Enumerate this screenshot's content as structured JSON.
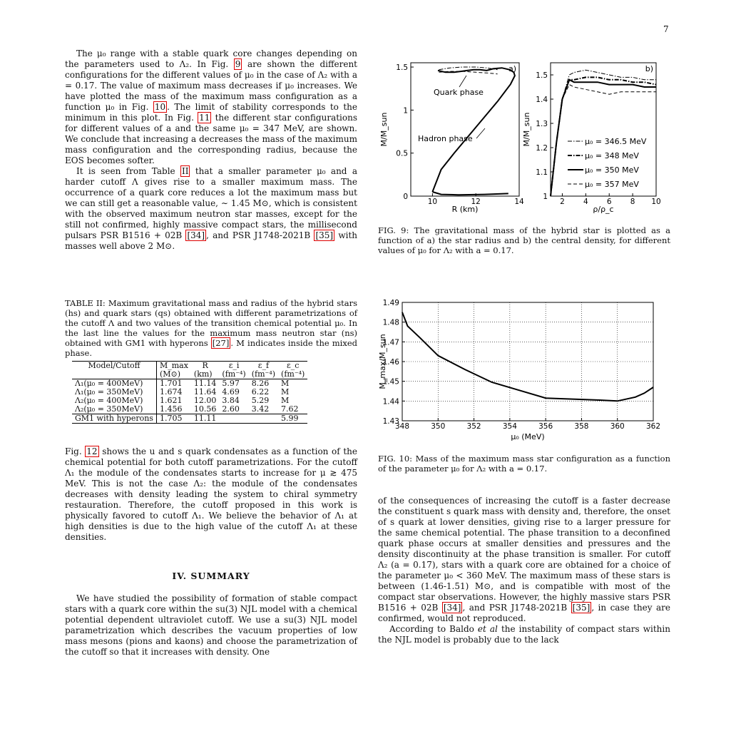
{
  "page": {
    "number": "7"
  },
  "left": {
    "p1": "The μ₀ range with a stable quark core changes depending on the parameters used to Λ₂. In Fig. ",
    "p1_ref": "9",
    "p1b": " are shown the different configurations for the different values of μ₀ in the case of Λ₂ with a = 0.17. The value of maximum mass decreases if μ₀ increases. We have plotted the mass of the maximum mass configuration as a function μ₀ in Fig. ",
    "p1_ref2": "10",
    "p1c": ". The limit of stability corresponds to the minimum in this plot. In Fig. ",
    "p1_ref3": "11",
    "p1d": " the different star configurations for different values of a and the same μ₀ = 347 MeV, are shown. We conclude that increasing a decreases the mass of the maximum mass configuration and the corresponding radius, because the EOS becomes softer.",
    "p2a": "It is seen from Table ",
    "p2_ref": "II",
    "p2b": " that a smaller parameter μ₀ and a harder cutoff Λ gives rise to a smaller maximum mass. The occurrence of a quark core reduces a lot the maximum mass but we can still get a reasonable value, ∼ 1.45 M⊙, which is consistent with the observed maximum neutron star masses, except for the still not confirmed, highly massive compact stars, the millisecond pulsars PSR B1516 + 02B ",
    "p2_ref2": "[34]",
    "p2c": ", and PSR J1748-2021B ",
    "p2_ref3": "[35]",
    "p2d": " with masses well above 2 M⊙.",
    "table_caption_a": "TABLE II: Maximum gravitational mass and radius of the hybrid stars (hs) and quark stars (qs) obtained with different parametrizations of the cutoff Λ and two values of the transition chemical potential μ₀. In the last line the values for the maximum mass neutron star (ns) obtained with GM1 with hyperons ",
    "table_caption_ref": "[27]",
    "table_caption_b": ". M indicates inside the mixed phase.",
    "p3a": "Fig. ",
    "p3_ref": "12",
    "p3b": " shows the u and s quark condensates as a function of the chemical potential for both cutoff parametrizations. For the cutoff Λ₁ the module of the condensates starts to increase for μ ≳ 475 MeV. This is not the case Λ₂: the module of the condensates decreases with density leading the system to chiral symmetry restauration. Therefore, the cutoff proposed in this work is physically favored to cutoff Λ₁. We believe the behavior of Λ₁ at high densities is due to the high value of the cutoff Λ₁ at these densities.",
    "section_title": "IV.   SUMMARY",
    "p4": "We have studied the possibility of formation of stable compact stars with a quark core within the su(3) NJL model with a chemical potential dependent ultraviolet cutoff. We use a su(3) NJL model parametrization which describes the vacuum properties of low mass mesons (pions and kaons) and choose the parametrization of the cutoff so that it increases with density. One"
  },
  "table": {
    "headers": [
      "Model/Cutoff",
      "M_max",
      "R",
      "ε_i",
      "ε_f",
      "ε_c"
    ],
    "units": [
      "",
      "(M⊙)",
      "(km)",
      "(fm⁻⁴)",
      "(fm⁻⁴)",
      "(fm⁻⁴)"
    ],
    "rows": [
      [
        "Λ₁(μ₀ = 400MeV)",
        "1.701",
        "11.14",
        "5.97",
        "8.26",
        "M"
      ],
      [
        "Λ₁(μ₀ = 350MeV)",
        "1.674",
        "11.64",
        "4.69",
        "6.22",
        "M"
      ],
      [
        "Λ₂(μ₀ = 400MeV)",
        "1.621",
        "12.00",
        "3.84",
        "5.29",
        "M"
      ],
      [
        "Λ₂(μ₀ = 350MeV)",
        "1.456",
        "10.56",
        "2.60",
        "3.42",
        "7.62"
      ],
      [
        "GM1 with hyperons",
        "1.705",
        "11.11",
        "",
        "",
        "5.99"
      ]
    ]
  },
  "right": {
    "fig9_caption": "FIG. 9: The gravitational mass of the hybrid star is plotted as a function of a) the star radius and b) the central density, for different values of μ₀ for Λ₂ with a = 0.17.",
    "fig10_caption": "FIG. 10: Mass of the maximum mass star configuration as a function of the parameter μ₀ for Λ₂ with a = 0.17.",
    "p5": "of the consequences of increasing the cutoff is a faster decrease the constituent s quark mass with density and, therefore, the onset of s quark at lower densities, giving rise to a larger pressure for the same chemical potential. The phase transition to a deconfined quark phase occurs at smaller densities and pressures and the density discontinuity at the phase transition is smaller. For cutoff Λ₂ (a = 0.17), stars with a quark core are obtained for a choice of the parameter μ₀ < 360 MeV. The maximum mass of these stars is between (1.46-1.51) M⊙, and is compatible with most of the compact star observations. However, the highly massive stars PSR B1516 + 02B ",
    "p5_ref": "[34]",
    "p5b": ", and PSR J1748-2021B ",
    "p5_ref2": "[35]",
    "p5c": ", in case they are confirmed, would not reproduced.",
    "p6a": "According to Baldo ",
    "p6_em": "et al",
    "p6b": " the instability of compact stars within the NJL model is probably due to the lack"
  },
  "chart_data": [
    {
      "type": "line",
      "panel_label": "a)",
      "xlabel": "R (km)",
      "ylabel": "M/M_sun",
      "xlim": [
        9,
        14
      ],
      "ylim": [
        0,
        1.55
      ],
      "xticks": [
        "10",
        "12",
        "14"
      ],
      "yticks": [
        "0",
        "0.5",
        "1",
        "1.5"
      ],
      "annotations": [
        "Quark phase",
        "Hadron phase"
      ],
      "series": [
        {
          "style": "solid",
          "x": [
            10.0,
            10.4,
            11.0,
            12.0,
            13.0,
            13.6,
            13.8,
            13.75,
            13.55,
            13.2,
            12.8,
            12.5,
            12.2,
            11.9,
            11.6,
            11.3,
            11.0,
            10.6,
            10.25
          ],
          "y": [
            0.05,
            0.31,
            0.5,
            0.8,
            1.1,
            1.3,
            1.4,
            1.44,
            1.47,
            1.49,
            1.48,
            1.46,
            1.47,
            1.47,
            1.46,
            1.45,
            1.44,
            1.44,
            1.46
          ]
        },
        {
          "style": "solid",
          "x": [
            10.0,
            10.4,
            11.2,
            12.4,
            13.5
          ],
          "y": [
            0.05,
            0.02,
            0.015,
            0.02,
            0.03
          ]
        },
        {
          "style": "dash-dot",
          "x": [
            10.3,
            10.8,
            11.4,
            12.0,
            12.5,
            13.0
          ],
          "y": [
            1.47,
            1.49,
            1.5,
            1.5,
            1.49,
            1.47
          ]
        },
        {
          "style": "dashed",
          "x": [
            10.3,
            10.8,
            11.4,
            12.0,
            12.6,
            13.0
          ],
          "y": [
            1.44,
            1.45,
            1.45,
            1.44,
            1.43,
            1.42
          ]
        }
      ]
    },
    {
      "type": "line",
      "panel_label": "b)",
      "xlabel": "ρ/ρ_c",
      "ylabel": "M/M_sun",
      "xlim": [
        1,
        10
      ],
      "ylim": [
        1.0,
        1.55
      ],
      "xticks": [
        "2",
        "4",
        "6",
        "8",
        "10"
      ],
      "yticks": [
        "1",
        "1.1",
        "1.2",
        "1.3",
        "1.4",
        "1.5"
      ],
      "legend_position": "bottom-right",
      "series": [
        {
          "name": "μ₀ = 346.5 MeV",
          "style": "dash-dot",
          "x": [
            1.0,
            1.5,
            2.0,
            2.6,
            3.0,
            4.0,
            5.0,
            6.0,
            7.0,
            8.0,
            9.0,
            10.0
          ],
          "y": [
            1.0,
            1.22,
            1.4,
            1.5,
            1.51,
            1.52,
            1.51,
            1.5,
            1.49,
            1.49,
            1.48,
            1.48
          ]
        },
        {
          "name": "μ₀ = 348 MeV",
          "style": "dash-dot-bold",
          "x": [
            1.0,
            1.5,
            2.0,
            2.6,
            3.0,
            4.0,
            5.0,
            6.0,
            7.0,
            8.0,
            9.0,
            10.0
          ],
          "y": [
            1.0,
            1.22,
            1.4,
            1.48,
            1.48,
            1.49,
            1.49,
            1.48,
            1.48,
            1.47,
            1.47,
            1.46
          ]
        },
        {
          "name": "μ₀ = 350 MeV",
          "style": "solid",
          "x": [
            1.0,
            1.5,
            2.0,
            2.6,
            3.0,
            4.0,
            5.0,
            6.0,
            7.0,
            8.0,
            9.0,
            10.0
          ],
          "y": [
            1.0,
            1.22,
            1.4,
            1.48,
            1.47,
            1.47,
            1.47,
            1.46,
            1.46,
            1.46,
            1.45,
            1.45
          ]
        },
        {
          "name": "μ₀ = 357 MeV",
          "style": "dashed",
          "x": [
            1.0,
            1.5,
            2.0,
            2.6,
            3.0,
            4.0,
            5.0,
            6.0,
            7.0,
            8.0,
            9.0,
            10.0
          ],
          "y": [
            1.0,
            1.22,
            1.4,
            1.46,
            1.45,
            1.44,
            1.43,
            1.42,
            1.43,
            1.43,
            1.43,
            1.43
          ]
        }
      ]
    },
    {
      "type": "line",
      "xlabel": "μ₀ (MeV)",
      "ylabel": "M_max/M_sun",
      "xlim": [
        348,
        362
      ],
      "ylim": [
        1.43,
        1.49
      ],
      "grid": true,
      "xticks": [
        "348",
        "350",
        "352",
        "354",
        "356",
        "358",
        "360",
        "362"
      ],
      "yticks": [
        "1.43",
        "1.44",
        "1.45",
        "1.46",
        "1.47",
        "1.48",
        "1.49"
      ],
      "series": [
        {
          "style": "solid",
          "x": [
            348.0,
            348.3,
            349.0,
            350.0,
            351.5,
            353.0,
            354.5,
            356.0,
            357.5,
            359.0,
            360.0,
            361.0,
            361.5,
            362.0
          ],
          "y": [
            1.485,
            1.478,
            1.472,
            1.463,
            1.456,
            1.4495,
            1.4455,
            1.4415,
            1.441,
            1.4405,
            1.44,
            1.442,
            1.444,
            1.447
          ]
        }
      ]
    }
  ]
}
